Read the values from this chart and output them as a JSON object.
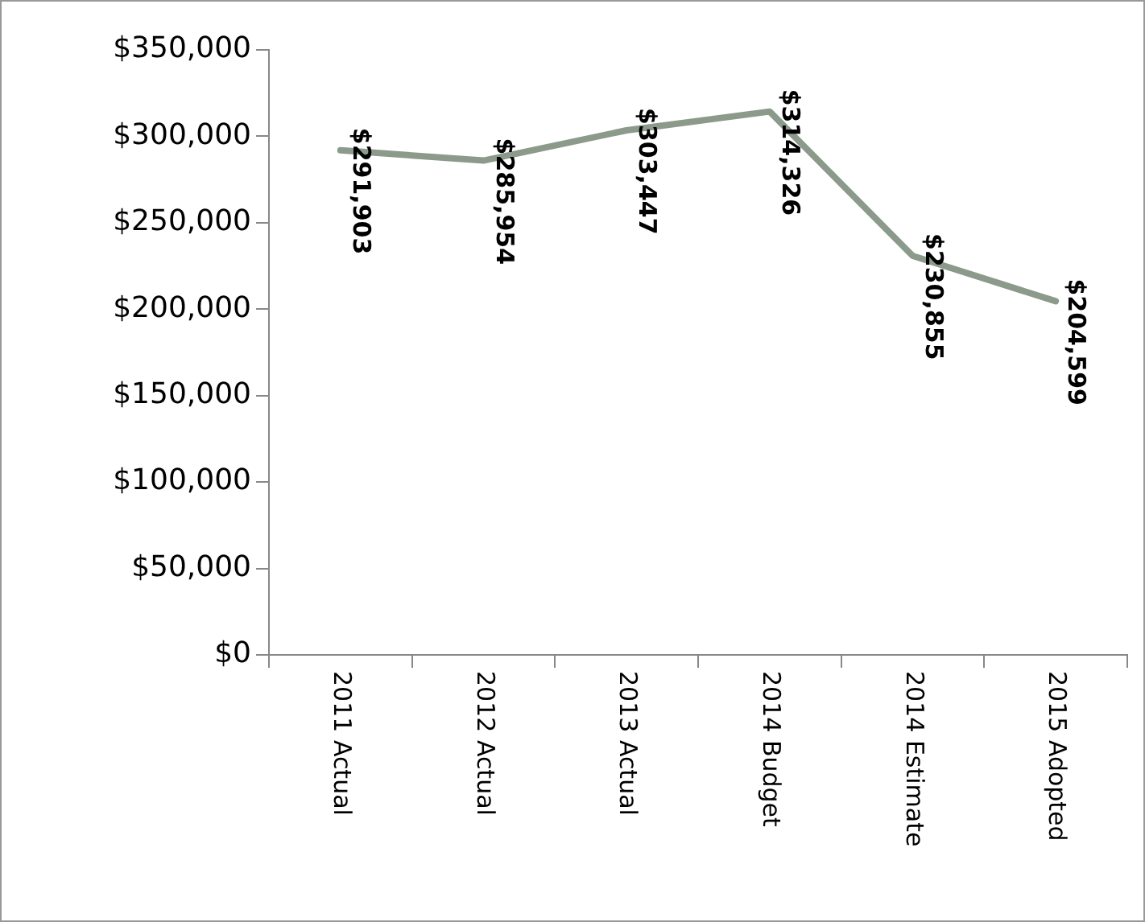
{
  "chart_data": {
    "type": "line",
    "categories": [
      "2011 Actual",
      "2012 Actual",
      "2013 Actual",
      "2014 Budget",
      "2014 Estimate",
      "2015 Adopted"
    ],
    "series": [
      {
        "color": "#8c9a8c",
        "values": [
          291903,
          285954,
          303447,
          314326,
          230855,
          204599
        ]
      }
    ],
    "value_labels": [
      "$291,903",
      "$285,954",
      "$303,447",
      "$314,326",
      "$230,855",
      "$204,599"
    ],
    "ylim": [
      0,
      350000
    ],
    "yticks": [
      {
        "value": 0,
        "label": "$0"
      },
      {
        "value": 50000,
        "label": "$50,000"
      },
      {
        "value": 100000,
        "label": "$100,000"
      },
      {
        "value": 150000,
        "label": "$150,000"
      },
      {
        "value": 200000,
        "label": "$200,000"
      },
      {
        "value": 250000,
        "label": "$250,000"
      },
      {
        "value": 300000,
        "label": "$300,000"
      },
      {
        "value": 350000,
        "label": "$350,000"
      }
    ],
    "grid": false,
    "legend": false
  }
}
